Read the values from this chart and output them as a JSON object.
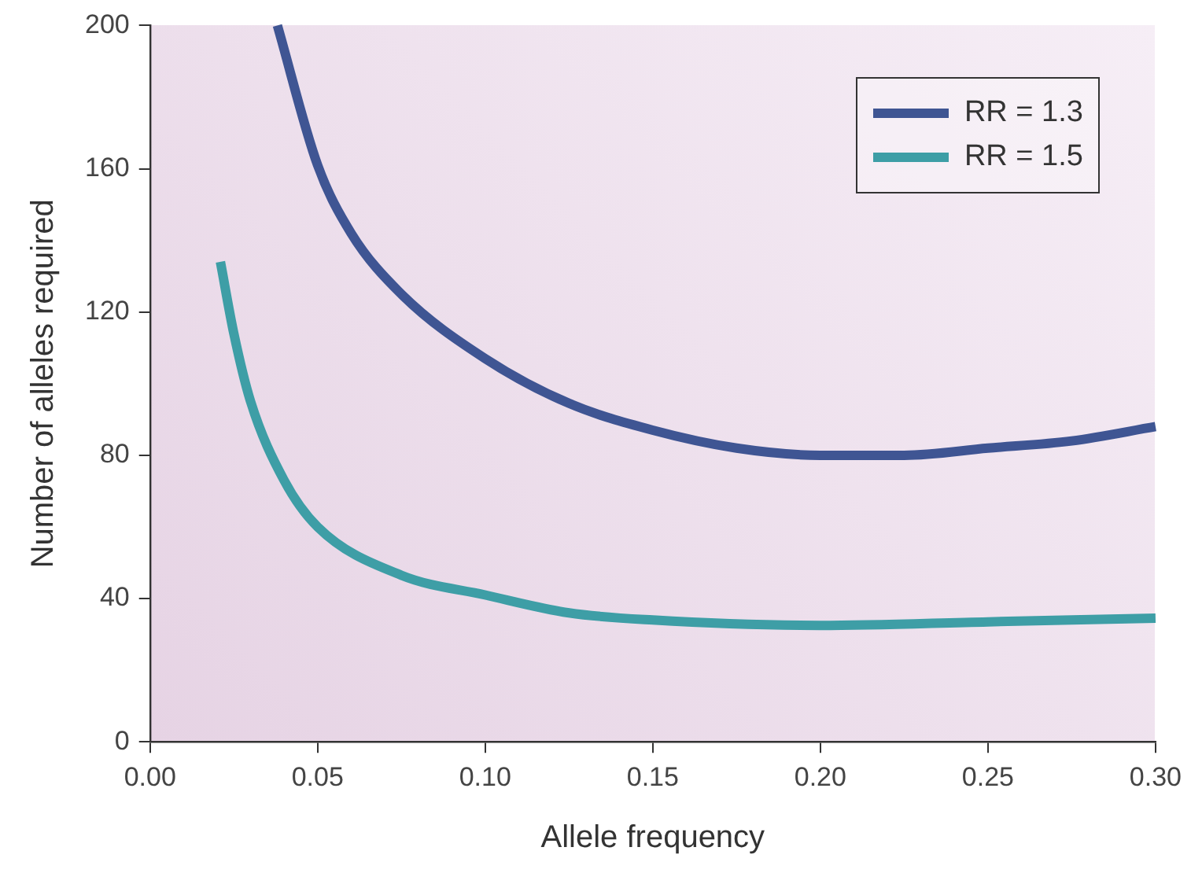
{
  "chart_data": {
    "type": "line",
    "xlabel": "Allele frequency",
    "ylabel": "Number of alleles required",
    "xlim": [
      0,
      0.3
    ],
    "xticks": [
      {
        "value": 0,
        "label": "0.00"
      },
      {
        "value": 0.05,
        "label": "0.05"
      },
      {
        "value": 0.1,
        "label": "0.10"
      },
      {
        "value": 0.15,
        "label": "0.15"
      },
      {
        "value": 0.2,
        "label": "0.20"
      },
      {
        "value": 0.25,
        "label": "0.25"
      },
      {
        "value": 0.3,
        "label": "0.30"
      }
    ],
    "ylim": [
      0,
      200
    ],
    "yticks": [
      0,
      40,
      80,
      120,
      160,
      200
    ],
    "grid": false,
    "legend": "top right",
    "marker": "none",
    "line_style": "solid",
    "series": [
      {
        "name": "RR = 1.3",
        "color": "#3f5593",
        "x": [
          0.038,
          0.05,
          0.06,
          0.075,
          0.1,
          0.125,
          0.15,
          0.175,
          0.2,
          0.225,
          0.25,
          0.275,
          0.3
        ],
        "values": [
          200,
          161,
          142,
          125,
          107,
          94.5,
          87,
          82,
          80,
          80,
          82,
          84,
          88
        ]
      },
      {
        "name": "RR = 1.5",
        "color": "#3e9ea6",
        "x": [
          0.021,
          0.025,
          0.03,
          0.04,
          0.05,
          0.075,
          0.1,
          0.125,
          0.15,
          0.2,
          0.25,
          0.3
        ],
        "values": [
          134,
          114,
          95,
          73,
          60,
          46.5,
          41,
          36,
          34,
          32.5,
          33.5,
          34.5
        ]
      }
    ]
  }
}
